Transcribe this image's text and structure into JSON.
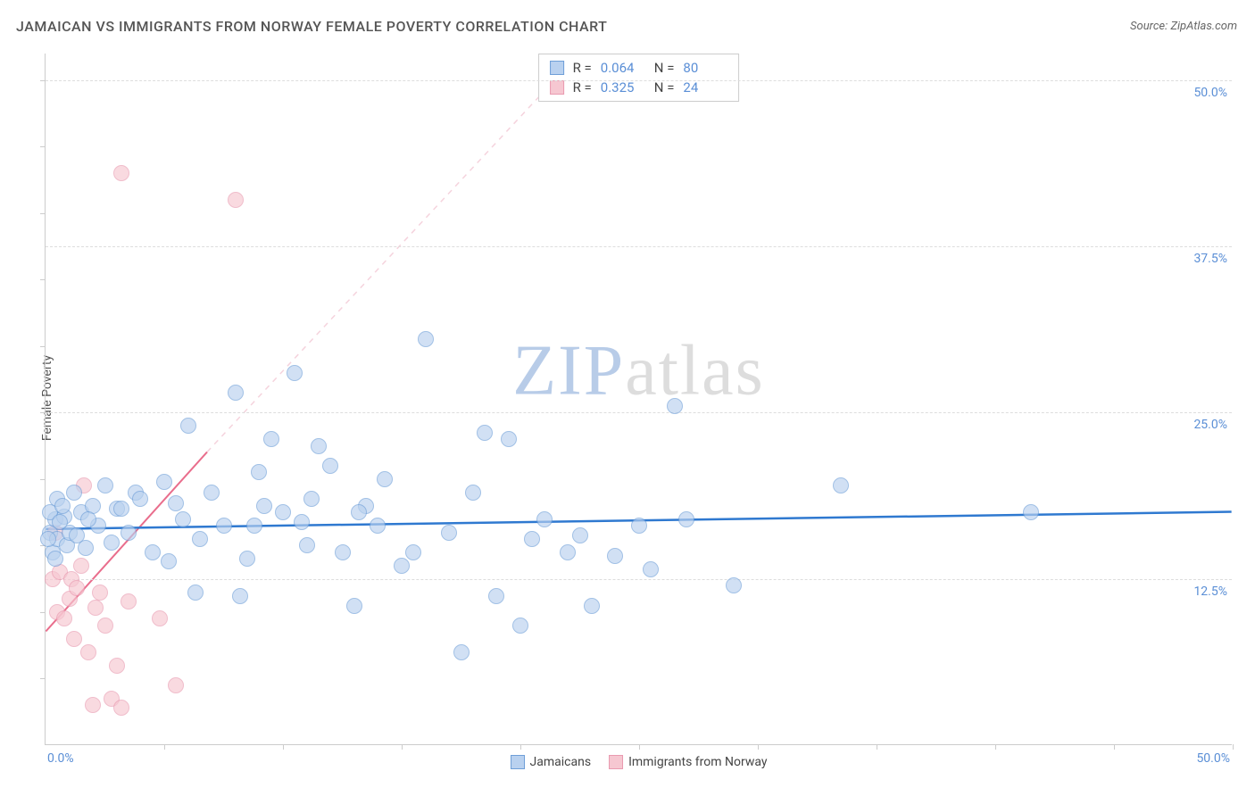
{
  "header": {
    "title": "JAMAICAN VS IMMIGRANTS FROM NORWAY FEMALE POVERTY CORRELATION CHART",
    "source_prefix": "Source: ",
    "source": "ZipAtlas.com"
  },
  "y_axis_label": "Female Poverty",
  "watermark": {
    "zip": "ZIP",
    "atlas": "atlas"
  },
  "chart": {
    "type": "scatter",
    "xlim": [
      0,
      50
    ],
    "ylim": [
      0,
      52
    ],
    "grid_color": "#dddddd",
    "axis_color": "#cccccc",
    "background_color": "#ffffff",
    "y_ticks": [
      {
        "value": 12.5,
        "label": "12.5%"
      },
      {
        "value": 25.0,
        "label": "25.0%"
      },
      {
        "value": 37.5,
        "label": "37.5%"
      },
      {
        "value": 50.0,
        "label": "50.0%"
      }
    ],
    "x_origin_label": "0.0%",
    "x_max_label": "50.0%",
    "x_minor_ticks": [
      5,
      10,
      15,
      20,
      25,
      30,
      35,
      40,
      45,
      50
    ],
    "y_minor_ticks": [
      5,
      10,
      15,
      20,
      25,
      30,
      35,
      40,
      45,
      50
    ]
  },
  "series": {
    "blue": {
      "label": "Jamaicans",
      "fill_color": "#b9d1ef",
      "stroke_color": "#6f9fd8",
      "fill_opacity": 0.65,
      "marker_size": 18,
      "R": "0.064",
      "N": "80",
      "trend": {
        "color": "#2f79d0",
        "width": 2.5,
        "y_at_x0": 16.2,
        "y_at_xmax": 17.5
      },
      "trend_ext": {
        "color": "#d7e3f4",
        "dash": "6,6"
      },
      "points": [
        [
          0.2,
          16.0
        ],
        [
          0.3,
          14.5
        ],
        [
          0.4,
          17.0
        ],
        [
          0.5,
          15.5
        ],
        [
          0.5,
          18.5
        ],
        [
          0.8,
          17.2
        ],
        [
          0.9,
          15.0
        ],
        [
          1.0,
          16.0
        ],
        [
          1.2,
          19.0
        ],
        [
          1.5,
          17.5
        ],
        [
          1.7,
          14.8
        ],
        [
          2.0,
          18.0
        ],
        [
          2.2,
          16.5
        ],
        [
          2.5,
          19.5
        ],
        [
          2.8,
          15.2
        ],
        [
          3.0,
          17.8
        ],
        [
          3.2,
          17.8
        ],
        [
          3.5,
          16.0
        ],
        [
          3.8,
          19.0
        ],
        [
          4.0,
          18.5
        ],
        [
          5.0,
          19.8
        ],
        [
          5.2,
          13.8
        ],
        [
          5.5,
          18.2
        ],
        [
          6.0,
          24.0
        ],
        [
          6.3,
          11.5
        ],
        [
          6.5,
          15.5
        ],
        [
          7.0,
          19.0
        ],
        [
          8.0,
          26.5
        ],
        [
          8.2,
          11.2
        ],
        [
          8.5,
          14.0
        ],
        [
          8.8,
          16.5
        ],
        [
          9.0,
          20.5
        ],
        [
          9.5,
          23.0
        ],
        [
          10.0,
          17.5
        ],
        [
          10.5,
          28.0
        ],
        [
          11.0,
          15.0
        ],
        [
          11.2,
          18.5
        ],
        [
          11.5,
          22.5
        ],
        [
          12.0,
          21.0
        ],
        [
          12.5,
          14.5
        ],
        [
          13.0,
          10.5
        ],
        [
          13.5,
          18.0
        ],
        [
          14.0,
          16.5
        ],
        [
          14.3,
          20.0
        ],
        [
          15.0,
          13.5
        ],
        [
          15.5,
          14.5
        ],
        [
          16.0,
          30.5
        ],
        [
          17.0,
          16.0
        ],
        [
          17.5,
          7.0
        ],
        [
          18.0,
          19.0
        ],
        [
          18.5,
          23.5
        ],
        [
          19.0,
          11.2
        ],
        [
          19.5,
          23.0
        ],
        [
          20.0,
          9.0
        ],
        [
          20.5,
          15.5
        ],
        [
          21.0,
          17.0
        ],
        [
          22.0,
          14.5
        ],
        [
          22.5,
          15.8
        ],
        [
          23.0,
          10.5
        ],
        [
          24.0,
          14.2
        ],
        [
          25.0,
          16.5
        ],
        [
          25.5,
          13.2
        ],
        [
          26.5,
          25.5
        ],
        [
          27.0,
          17.0
        ],
        [
          29.0,
          12.0
        ],
        [
          33.5,
          19.5
        ],
        [
          41.5,
          17.5
        ],
        [
          0.1,
          15.5
        ],
        [
          0.2,
          17.5
        ],
        [
          0.4,
          14.0
        ],
        [
          0.6,
          16.8
        ],
        [
          0.7,
          18.0
        ],
        [
          1.3,
          15.8
        ],
        [
          1.8,
          17.0
        ],
        [
          4.5,
          14.5
        ],
        [
          5.8,
          17.0
        ],
        [
          7.5,
          16.5
        ],
        [
          9.2,
          18.0
        ],
        [
          10.8,
          16.8
        ],
        [
          13.2,
          17.5
        ]
      ]
    },
    "pink": {
      "label": "Immigrants from Norway",
      "fill_color": "#f6c7d1",
      "stroke_color": "#e99ab0",
      "fill_opacity": 0.65,
      "marker_size": 18,
      "R": "0.325",
      "N": "24",
      "trend": {
        "color": "#e96d8c",
        "width": 2,
        "x0": 0,
        "y0": 8.5,
        "x1": 6.8,
        "y1": 22.0
      },
      "trend_ext": {
        "color": "#f5d3dd",
        "dash": "6,6",
        "x1": 22.5,
        "y1": 52
      },
      "points": [
        [
          0.3,
          12.5
        ],
        [
          0.5,
          10.0
        ],
        [
          0.6,
          13.0
        ],
        [
          0.8,
          9.5
        ],
        [
          1.0,
          11.0
        ],
        [
          1.1,
          12.5
        ],
        [
          1.2,
          8.0
        ],
        [
          1.3,
          11.8
        ],
        [
          1.5,
          13.5
        ],
        [
          1.8,
          7.0
        ],
        [
          2.0,
          3.0
        ],
        [
          2.1,
          10.3
        ],
        [
          2.3,
          11.5
        ],
        [
          2.5,
          9.0
        ],
        [
          2.8,
          3.5
        ],
        [
          3.0,
          6.0
        ],
        [
          3.2,
          2.8
        ],
        [
          3.5,
          10.8
        ],
        [
          1.6,
          19.5
        ],
        [
          4.8,
          9.5
        ],
        [
          5.5,
          4.5
        ],
        [
          3.2,
          43.0
        ],
        [
          8.0,
          41.0
        ],
        [
          0.4,
          16.0
        ]
      ]
    }
  },
  "correlation_legend": {
    "r_label": "R =",
    "n_label": "N ="
  },
  "bottom_legend_labels": {
    "blue": "Jamaicans",
    "pink": "Immigrants from Norway"
  }
}
